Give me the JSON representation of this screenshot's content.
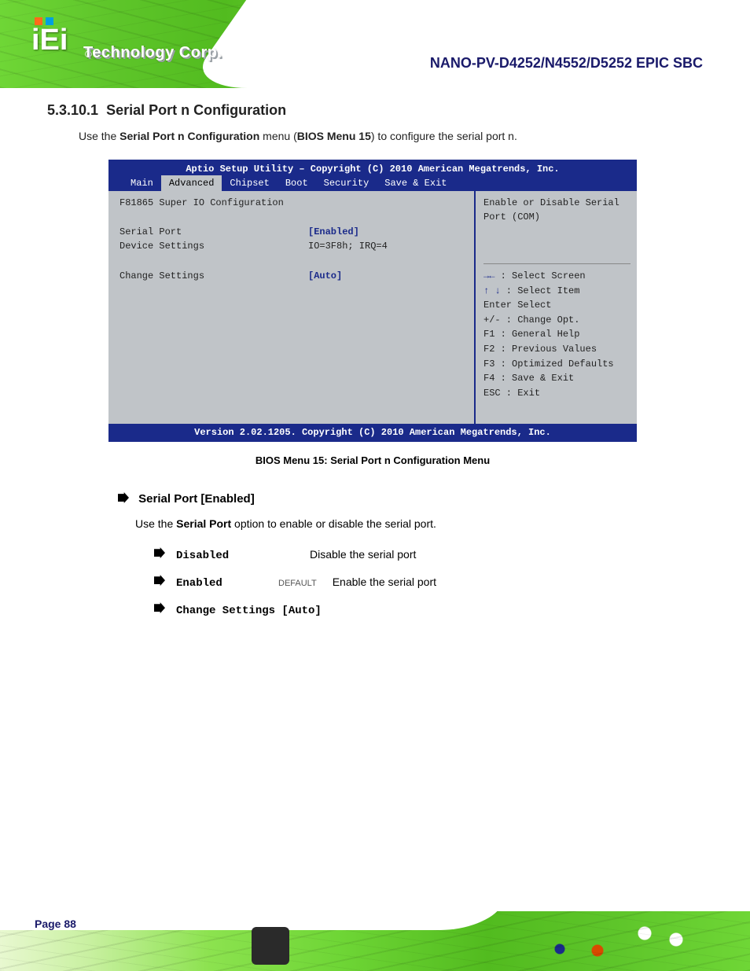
{
  "colors": {
    "bios_bar": "#1a2a8a",
    "bios_panel": "#c0c4c8",
    "pcb_green": "#6fd636",
    "text_dark": "#222222",
    "logo_dot1": "#ff6a1a",
    "logo_dot2": "#00a0e0",
    "brand_navy": "#1a1a6a"
  },
  "header": {
    "logo_text": "iEi",
    "registered": "®",
    "company": "Technology Corp.",
    "product": "NANO-PV-D4252/N4552/D5252 EPIC SBC"
  },
  "section": {
    "number": "5.3.10.1",
    "title": "Serial Port n Configuration",
    "intro": "Use the Serial Port n Configuration menu (BIOS Menu 15) to configure the serial port n."
  },
  "bios": {
    "utility_title": "Aptio Setup Utility – Copyright (C) 2010 American Megatrends, Inc.",
    "tabs": [
      "Main",
      "Advanced",
      "Chipset",
      "Boot",
      "Security",
      "Save & Exit"
    ],
    "active_tab_index": 1,
    "left": {
      "heading": "F81865 Super IO Configuration",
      "rows": [
        {
          "k": "Serial Port",
          "v": "[Enabled]",
          "value_color": "#1a2a8a"
        },
        {
          "k": "Device Settings",
          "v": "IO=3F8h; IRQ=4",
          "value_color": "#222222"
        }
      ],
      "blank": "",
      "rows2": [
        {
          "k": "Change Settings",
          "v": "[Auto]",
          "value_color": "#1a2a8a"
        }
      ]
    },
    "right": {
      "help1": "Enable or Disable Serial",
      "help2": "Port (COM)",
      "keys": [
        {
          "sym": "→←",
          "label": ": Select Screen",
          "sym_color": "#1a2a8a"
        },
        {
          "sym": "↑ ↓",
          "label": ": Select Item",
          "sym_color": "#1a2a8a"
        },
        {
          "sym": "Enter",
          "label": "Select",
          "sym_color": "#222222"
        },
        {
          "sym": "+/-",
          "label": ": Change Opt.",
          "sym_color": "#222222"
        },
        {
          "sym": "F1",
          "label": ": General Help",
          "sym_color": "#222222"
        },
        {
          "sym": "F2",
          "label": ": Previous Values",
          "sym_color": "#222222"
        },
        {
          "sym": "F3",
          "label": ": Optimized Defaults",
          "sym_color": "#222222"
        },
        {
          "sym": "F4",
          "label": ": Save & Exit",
          "sym_color": "#222222"
        },
        {
          "sym": "ESC",
          "label": ": Exit",
          "sym_color": "#222222"
        }
      ]
    },
    "footer": "Version 2.02.1205. Copyright (C) 2010 American Megatrends, Inc.",
    "caption": "BIOS Menu 15: Serial Port n Configuration Menu"
  },
  "option": {
    "name": "Serial Port [Enabled]",
    "desc": "Use the Serial Port option to enable or disable the serial port.",
    "values": [
      {
        "name": "Disabled",
        "is_default": false,
        "desc": "Disable the serial port"
      },
      {
        "name": "Enabled",
        "is_default": true,
        "default_label": "DEFAULT",
        "desc": "Enable the serial port"
      },
      {
        "name": "Change Settings [Auto]",
        "is_default": false,
        "desc": ""
      }
    ]
  },
  "footer": {
    "page_label": "Page 88"
  }
}
